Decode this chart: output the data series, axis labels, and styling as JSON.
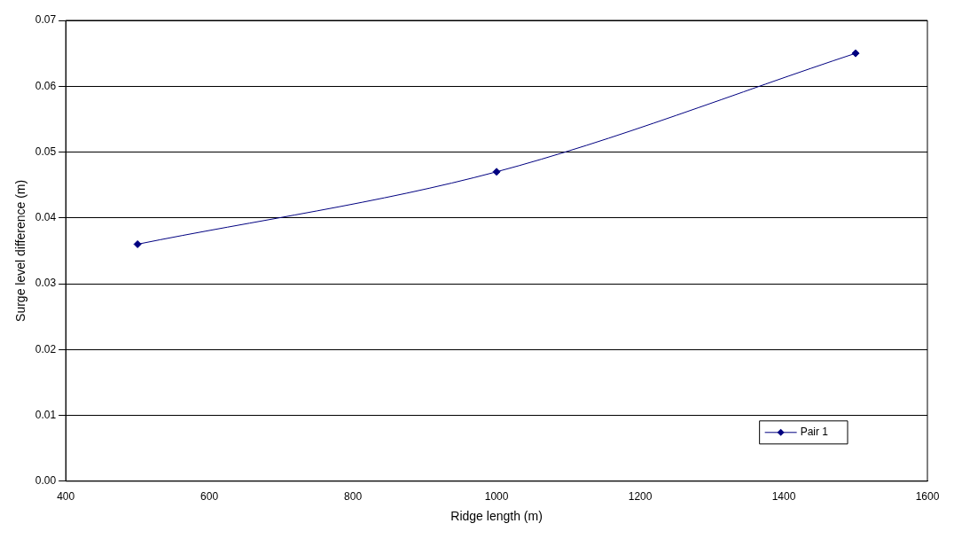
{
  "chart_data": {
    "type": "line",
    "xlabel": "Ridge length (m)",
    "ylabel": "Surge level difference (m)",
    "x": [
      500,
      1000,
      1500
    ],
    "series": [
      {
        "name": "Pair 1",
        "color": "#000080",
        "values": [
          0.036,
          0.047,
          0.065
        ]
      }
    ],
    "xlim": [
      400,
      1600
    ],
    "xticks": [
      400,
      600,
      800,
      1000,
      1200,
      1400,
      1600
    ],
    "ylim": [
      0,
      0.07
    ],
    "yticks": [
      {
        "value": 0,
        "label": "0.00"
      },
      {
        "value": 0.01,
        "label": "0.01"
      },
      {
        "value": 0.02,
        "label": "0.02"
      },
      {
        "value": 0.03,
        "label": "0.03"
      },
      {
        "value": 0.04,
        "label": "0.04"
      },
      {
        "value": 0.05,
        "label": "0.05"
      },
      {
        "value": 0.06,
        "label": "0.06"
      },
      {
        "value": 0.07,
        "label": "0.07"
      }
    ],
    "grid": "y",
    "legend": "bottom right",
    "marker": "diamond",
    "line_style": "solid"
  }
}
